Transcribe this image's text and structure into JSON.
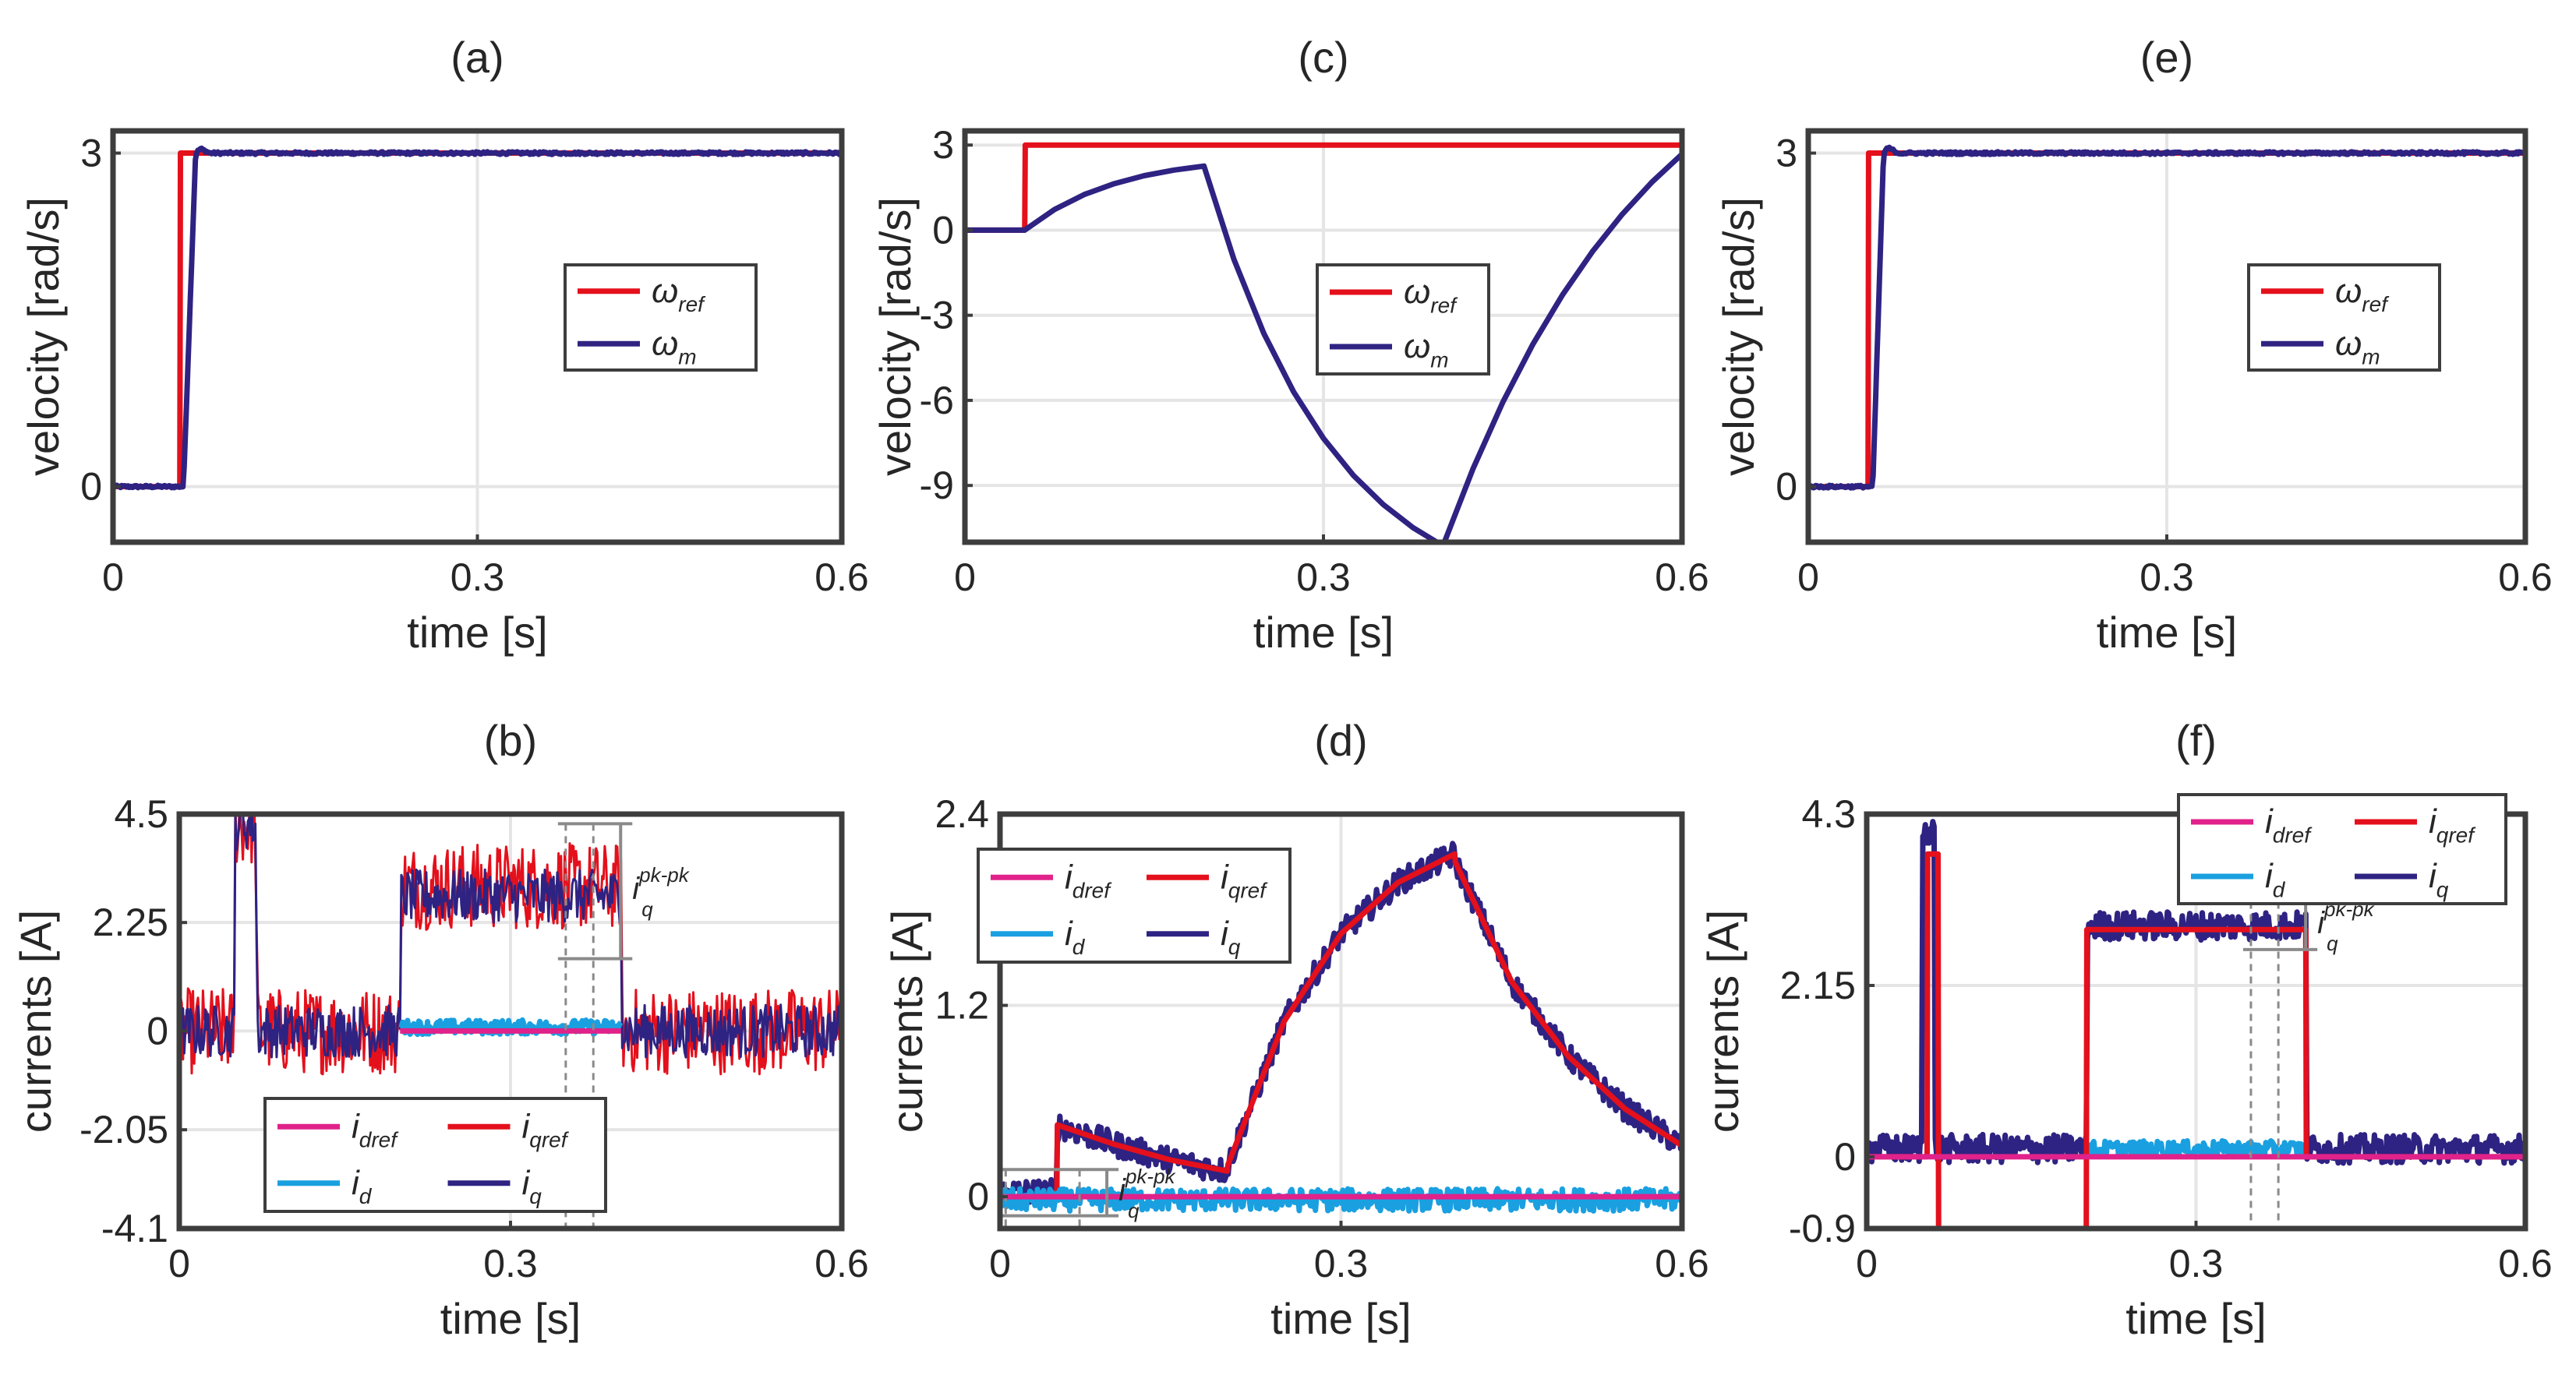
{
  "figure": {
    "background": "#ffffff"
  },
  "colors": {
    "ref": "#e4101c",
    "meas": "#2e2382",
    "dref": "#e0228a",
    "d": "#1aa0e0",
    "grid": "#e5e5e5",
    "axis": "#3d3d3d",
    "annot": "#8a8a8a"
  },
  "chart_data": [
    {
      "id": "a",
      "title": "(a)",
      "type": "line",
      "xlabel": "time [s]",
      "ylabel": "velocity [rad/s]",
      "xlim": [
        0,
        0.6
      ],
      "ylim": [
        -0.5,
        3.2
      ],
      "xticks": [
        0,
        0.3,
        0.6
      ],
      "xtick_labels": [
        "0",
        "0.3",
        "0.6"
      ],
      "yticks": [
        0,
        3
      ],
      "ytick_labels": [
        "0",
        "3"
      ],
      "legend": {
        "position": "right-middle",
        "entries": [
          {
            "main": "ω",
            "sub": "ref",
            "color_key": "ref"
          },
          {
            "main": "ω",
            "sub": "m",
            "color_key": "meas"
          }
        ]
      },
      "series": [
        {
          "name": "ω_ref",
          "color_key": "ref",
          "noise": 0,
          "x": [
            0,
            0.055,
            0.0555,
            0.6
          ],
          "y": [
            0,
            0,
            3,
            3
          ]
        },
        {
          "name": "ω_m",
          "color_key": "meas",
          "noise": 0.012,
          "x": [
            0,
            0.058,
            0.068,
            0.072,
            0.08,
            0.6
          ],
          "y": [
            0,
            0,
            3,
            3.04,
            3,
            3
          ]
        }
      ]
    },
    {
      "id": "b",
      "title": "(b)",
      "type": "line",
      "xlabel": "time [s]",
      "ylabel": "currents [A]",
      "xlim": [
        0,
        0.6
      ],
      "ylim": [
        -4.1,
        4.5
      ],
      "xticks": [
        0,
        0.3,
        0.6
      ],
      "xtick_labels": [
        "0",
        "0.3",
        "0.6"
      ],
      "yticks": [
        -4.1,
        -2.05,
        0,
        2.25,
        4.5
      ],
      "ytick_labels": [
        "-4.1",
        "-2.05",
        "0",
        "2.25",
        "4.5"
      ],
      "legend": {
        "position": "bottom-center",
        "columns": 2,
        "entries": [
          {
            "main": "i",
            "sub": "dref",
            "color_key": "dref"
          },
          {
            "main": "i",
            "sub": "qref",
            "color_key": "ref"
          },
          {
            "main": "i",
            "sub": "d",
            "color_key": "d"
          },
          {
            "main": "i",
            "sub": "q",
            "color_key": "meas"
          }
        ]
      },
      "annotation": {
        "main": "i",
        "sub": "q",
        "sup": "pk-pk",
        "x1": 0.35,
        "x2": 0.375,
        "y_low": 1.5,
        "y_high": 4.3
      },
      "series": [
        {
          "name": "i_qref",
          "color_key": "ref",
          "noise": 0.9,
          "x": [
            0,
            0.05,
            0.0501,
            0.07,
            0.0701,
            0.2,
            0.2001,
            0.4,
            0.4001,
            0.6
          ],
          "y": [
            0,
            0,
            4.3,
            4.3,
            0,
            0,
            3.0,
            3.0,
            0,
            0
          ]
        },
        {
          "name": "i_q",
          "color_key": "meas",
          "noise": 0.55,
          "x": [
            0,
            0.05,
            0.0501,
            0.07,
            0.0701,
            0.2,
            0.2001,
            0.4,
            0.4001,
            0.6
          ],
          "y": [
            0,
            0,
            4.3,
            4.3,
            0,
            0,
            2.8,
            2.8,
            0,
            0
          ]
        },
        {
          "name": "i_d",
          "color_key": "d",
          "noise": 0.15,
          "x": [
            0.2,
            0.4
          ],
          "y": [
            0.08,
            0.08
          ]
        },
        {
          "name": "i_dref",
          "color_key": "dref",
          "noise": 0,
          "x": [
            0.2,
            0.4
          ],
          "y": [
            0,
            0
          ]
        }
      ]
    },
    {
      "id": "c",
      "title": "(c)",
      "type": "line",
      "xlabel": "time [s]",
      "ylabel": "velocity [rad/s]",
      "xlim": [
        0,
        0.6
      ],
      "ylim": [
        -11,
        3.5
      ],
      "xticks": [
        0,
        0.3,
        0.6
      ],
      "xtick_labels": [
        "0",
        "0.3",
        "0.6"
      ],
      "yticks": [
        -9,
        -6,
        -3,
        0,
        3
      ],
      "ytick_labels": [
        "-9",
        "-6",
        "-3",
        "0",
        "3"
      ],
      "legend": {
        "position": "center-right",
        "entries": [
          {
            "main": "ω",
            "sub": "ref",
            "color_key": "ref"
          },
          {
            "main": "ω",
            "sub": "m",
            "color_key": "meas"
          }
        ]
      },
      "series": [
        {
          "name": "ω_ref",
          "color_key": "ref",
          "noise": 0,
          "x": [
            0,
            0.05,
            0.0505,
            0.6
          ],
          "y": [
            0,
            0,
            3,
            3
          ]
        },
        {
          "name": "ω_m",
          "color_key": "meas",
          "noise": 0,
          "x": [
            0,
            0.05,
            0.075,
            0.1,
            0.125,
            0.15,
            0.175,
            0.2,
            0.225,
            0.25,
            0.275,
            0.3,
            0.325,
            0.35,
            0.375,
            0.4,
            0.425,
            0.45,
            0.475,
            0.5,
            0.525,
            0.55,
            0.575,
            0.6
          ],
          "y": [
            0,
            0,
            0.73,
            1.26,
            1.64,
            1.92,
            2.12,
            2.26,
            -1.02,
            -3.63,
            -5.7,
            -7.34,
            -8.64,
            -9.67,
            -10.49,
            -11.13,
            -8.42,
            -6.07,
            -4.04,
            -2.28,
            -0.76,
            0.56,
            1.7,
            2.68
          ]
        }
      ]
    },
    {
      "id": "d",
      "title": "(d)",
      "type": "line",
      "xlabel": "time [s]",
      "ylabel": "currents [A]",
      "xlim": [
        0,
        0.6
      ],
      "ylim": [
        -0.2,
        2.4
      ],
      "xticks": [
        0,
        0.3,
        0.6
      ],
      "xtick_labels": [
        "0",
        "0.3",
        "0.6"
      ],
      "yticks": [
        0,
        1.2,
        2.4
      ],
      "ytick_labels": [
        "0",
        "1.2",
        "2.4"
      ],
      "legend": {
        "position": "top-left",
        "columns": 2,
        "entries": [
          {
            "main": "i",
            "sub": "dref",
            "color_key": "dref"
          },
          {
            "main": "i",
            "sub": "qref",
            "color_key": "ref"
          },
          {
            "main": "i",
            "sub": "d",
            "color_key": "d"
          },
          {
            "main": "i",
            "sub": "q",
            "color_key": "meas"
          }
        ]
      },
      "annotation": {
        "main": "i",
        "sub": "q",
        "sup": "pk-pk",
        "x1": 0.005,
        "x2": 0.07,
        "y_low": -0.12,
        "y_high": 0.17
      },
      "series": [
        {
          "name": "i_q",
          "color_key": "meas",
          "noise": 0.08,
          "x": [
            0,
            0.05,
            0.0505,
            0.1,
            0.15,
            0.2,
            0.2005,
            0.25,
            0.3,
            0.35,
            0.4,
            0.4005,
            0.45,
            0.5,
            0.55,
            0.6
          ],
          "y": [
            0.03,
            0.03,
            0.45,
            0.33,
            0.23,
            0.16,
            0.2,
            1.1,
            1.65,
            1.97,
            2.15,
            2.1,
            1.35,
            0.88,
            0.55,
            0.32
          ]
        },
        {
          "name": "i_qref",
          "color_key": "ref",
          "noise": 0,
          "x": [
            0,
            0.05,
            0.0505,
            0.1,
            0.15,
            0.2,
            0.2005,
            0.25,
            0.3,
            0.35,
            0.4,
            0.4005,
            0.45,
            0.5,
            0.55,
            0.6
          ],
          "y": [
            0,
            0,
            0.45,
            0.33,
            0.23,
            0.16,
            0.2,
            1.1,
            1.65,
            1.97,
            2.15,
            2.1,
            1.35,
            0.88,
            0.55,
            0.32
          ]
        },
        {
          "name": "i_d",
          "color_key": "d",
          "noise": 0.07,
          "x": [
            0,
            0.6
          ],
          "y": [
            -0.02,
            -0.02
          ]
        },
        {
          "name": "i_dref",
          "color_key": "dref",
          "noise": 0,
          "x": [
            0,
            0.6
          ],
          "y": [
            0,
            0
          ]
        }
      ]
    },
    {
      "id": "e",
      "title": "(e)",
      "type": "line",
      "xlabel": "time [s]",
      "ylabel": "velocity [rad/s]",
      "xlim": [
        0,
        0.6
      ],
      "ylim": [
        -0.5,
        3.2
      ],
      "xticks": [
        0,
        0.3,
        0.6
      ],
      "xtick_labels": [
        "0",
        "0.3",
        "0.6"
      ],
      "yticks": [
        0,
        3
      ],
      "ytick_labels": [
        "0",
        "3"
      ],
      "legend": {
        "position": "right-middle",
        "entries": [
          {
            "main": "ω",
            "sub": "ref",
            "color_key": "ref"
          },
          {
            "main": "ω",
            "sub": "m",
            "color_key": "meas"
          }
        ]
      },
      "series": [
        {
          "name": "ω_ref",
          "color_key": "ref",
          "noise": 0,
          "x": [
            0,
            0.05,
            0.0505,
            0.6
          ],
          "y": [
            0,
            0,
            3,
            3
          ]
        },
        {
          "name": "ω_m",
          "color_key": "meas",
          "noise": 0.012,
          "x": [
            0,
            0.054,
            0.063,
            0.067,
            0.075,
            0.6
          ],
          "y": [
            0,
            0,
            3,
            3.05,
            3,
            3
          ]
        }
      ]
    },
    {
      "id": "f",
      "title": "(f)",
      "type": "line",
      "xlabel": "time [s]",
      "ylabel": "currents [A]",
      "xlim": [
        0,
        0.6
      ],
      "ylim": [
        -0.9,
        4.3
      ],
      "xticks": [
        0,
        0.3,
        0.6
      ],
      "xtick_labels": [
        "0",
        "0.3",
        "0.6"
      ],
      "yticks": [
        -0.9,
        0,
        2.15,
        4.3
      ],
      "ytick_labels": [
        "-0.9",
        "0",
        "2.15",
        "4.3"
      ],
      "legend": {
        "position": "top-right",
        "columns": 2,
        "entries": [
          {
            "main": "i",
            "sub": "dref",
            "color_key": "dref"
          },
          {
            "main": "i",
            "sub": "qref",
            "color_key": "ref"
          },
          {
            "main": "i",
            "sub": "d",
            "color_key": "d"
          },
          {
            "main": "i",
            "sub": "q",
            "color_key": "meas"
          }
        ]
      },
      "annotation": {
        "main": "i",
        "sub": "q",
        "sup": "pk-pk",
        "x1": 0.35,
        "x2": 0.375,
        "y_low": 2.6,
        "y_high": 3.2
      },
      "series": [
        {
          "name": "i_q",
          "color_key": "meas",
          "noise": 0.18,
          "x": [
            0,
            0.05,
            0.0505,
            0.062,
            0.0625,
            0.2,
            0.2005,
            0.4,
            0.4005,
            0.6
          ],
          "y": [
            0.1,
            0.1,
            4.1,
            4.1,
            0.1,
            0.1,
            2.9,
            2.9,
            0.1,
            0.1
          ]
        },
        {
          "name": "i_d",
          "color_key": "d",
          "noise": 0.1,
          "x": [
            0.2,
            0.4
          ],
          "y": [
            0.1,
            0.1
          ]
        },
        {
          "name": "i_qref",
          "color_key": "ref",
          "noise": 0,
          "x": [
            0,
            0.055,
            0.0555,
            0.065,
            0.0655,
            0.2,
            0.2005,
            0.4,
            0.4005,
            0.6
          ],
          "y": [
            0,
            0,
            3.8,
            3.8,
            -0.9,
            -0.9,
            2.85,
            2.85,
            0,
            0
          ]
        },
        {
          "name": "i_dref",
          "color_key": "dref",
          "noise": 0,
          "x": [
            0,
            0.6
          ],
          "y": [
            0,
            0
          ]
        }
      ]
    }
  ]
}
